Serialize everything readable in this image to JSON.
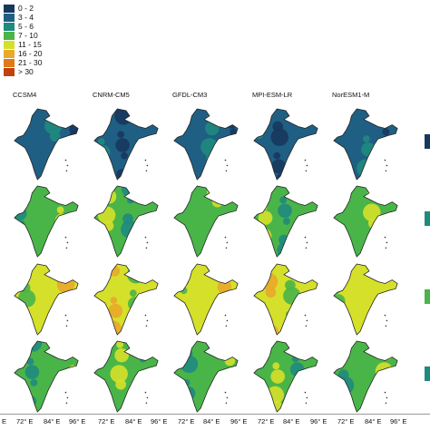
{
  "legend": {
    "items": [
      {
        "label": "0 - 2",
        "color": "#17375e"
      },
      {
        "label": "3 - 4",
        "color": "#1f5f84"
      },
      {
        "label": "5 - 6",
        "color": "#1f8a7e"
      },
      {
        "label": "7 - 10",
        "color": "#49b548"
      },
      {
        "label": "11 - 15",
        "color": "#d5e02a"
      },
      {
        "label": "16 - 20",
        "color": "#e9a92a"
      },
      {
        "label": "21 - 30",
        "color": "#e07a18"
      },
      {
        "label": "> 30",
        "color": "#c2410c"
      }
    ]
  },
  "models": [
    "CCSM4",
    "CNRM-CM5",
    "GFDL-CM3",
    "MPI-ESM-LR",
    "NorESM1-M"
  ],
  "rows": [
    {
      "palette": [
        "#17375e",
        "#1f5f84",
        "#1f8a7e"
      ]
    },
    {
      "palette": [
        "#1f8a7e",
        "#49b548",
        "#d5e02a"
      ]
    },
    {
      "palette": [
        "#49b548",
        "#d5e02a",
        "#e9a92a"
      ]
    },
    {
      "palette": [
        "#1f8a7e",
        "#49b548",
        "#d5e02a"
      ]
    }
  ],
  "x_axis_ticks": [
    "E",
    "72° E",
    "84° E",
    "96° E",
    "72° E",
    "84° E",
    "96° E",
    "72° E",
    "84° E",
    "96° E",
    "72° E",
    "84° E",
    "96° E",
    "72° E",
    "84° E",
    "96° E"
  ]
}
